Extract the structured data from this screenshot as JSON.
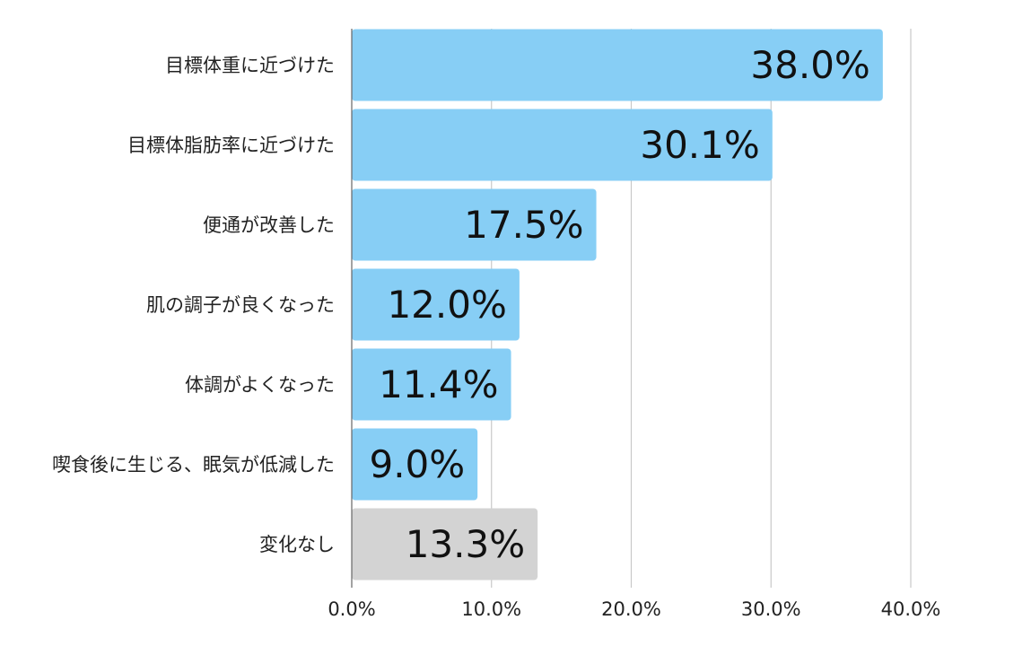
{
  "chart_data": {
    "type": "bar",
    "orientation": "horizontal",
    "categories": [
      "目標体重に近づけた",
      "目標体脂肪率に近づけた",
      "便通が改善した",
      "肌の調子が良くなった",
      "体調がよくなった",
      "喫食後に生じる、眠気が低減した",
      "変化なし"
    ],
    "values": [
      38.0,
      30.1,
      17.5,
      12.0,
      11.4,
      9.0,
      13.3
    ],
    "data_labels": [
      "38.0%",
      "30.1%",
      "17.5%",
      "12.0%",
      "11.4%",
      "9.0%",
      "13.3%"
    ],
    "x_ticks": [
      0,
      10,
      20,
      30,
      40
    ],
    "x_tick_labels": [
      "0.0%",
      "10.0%",
      "20.0%",
      "30.0%",
      "40.0%"
    ],
    "xlim": [
      0,
      40
    ],
    "grid": "vertical",
    "legend": "none",
    "title": "",
    "xlabel": "",
    "ylabel": "",
    "colors": {
      "bar": "#87CEF5",
      "bar_highlight": "#D3D3D3",
      "grid": "#C8C8C8",
      "axis": "#666666"
    },
    "highlight_index": 6
  }
}
